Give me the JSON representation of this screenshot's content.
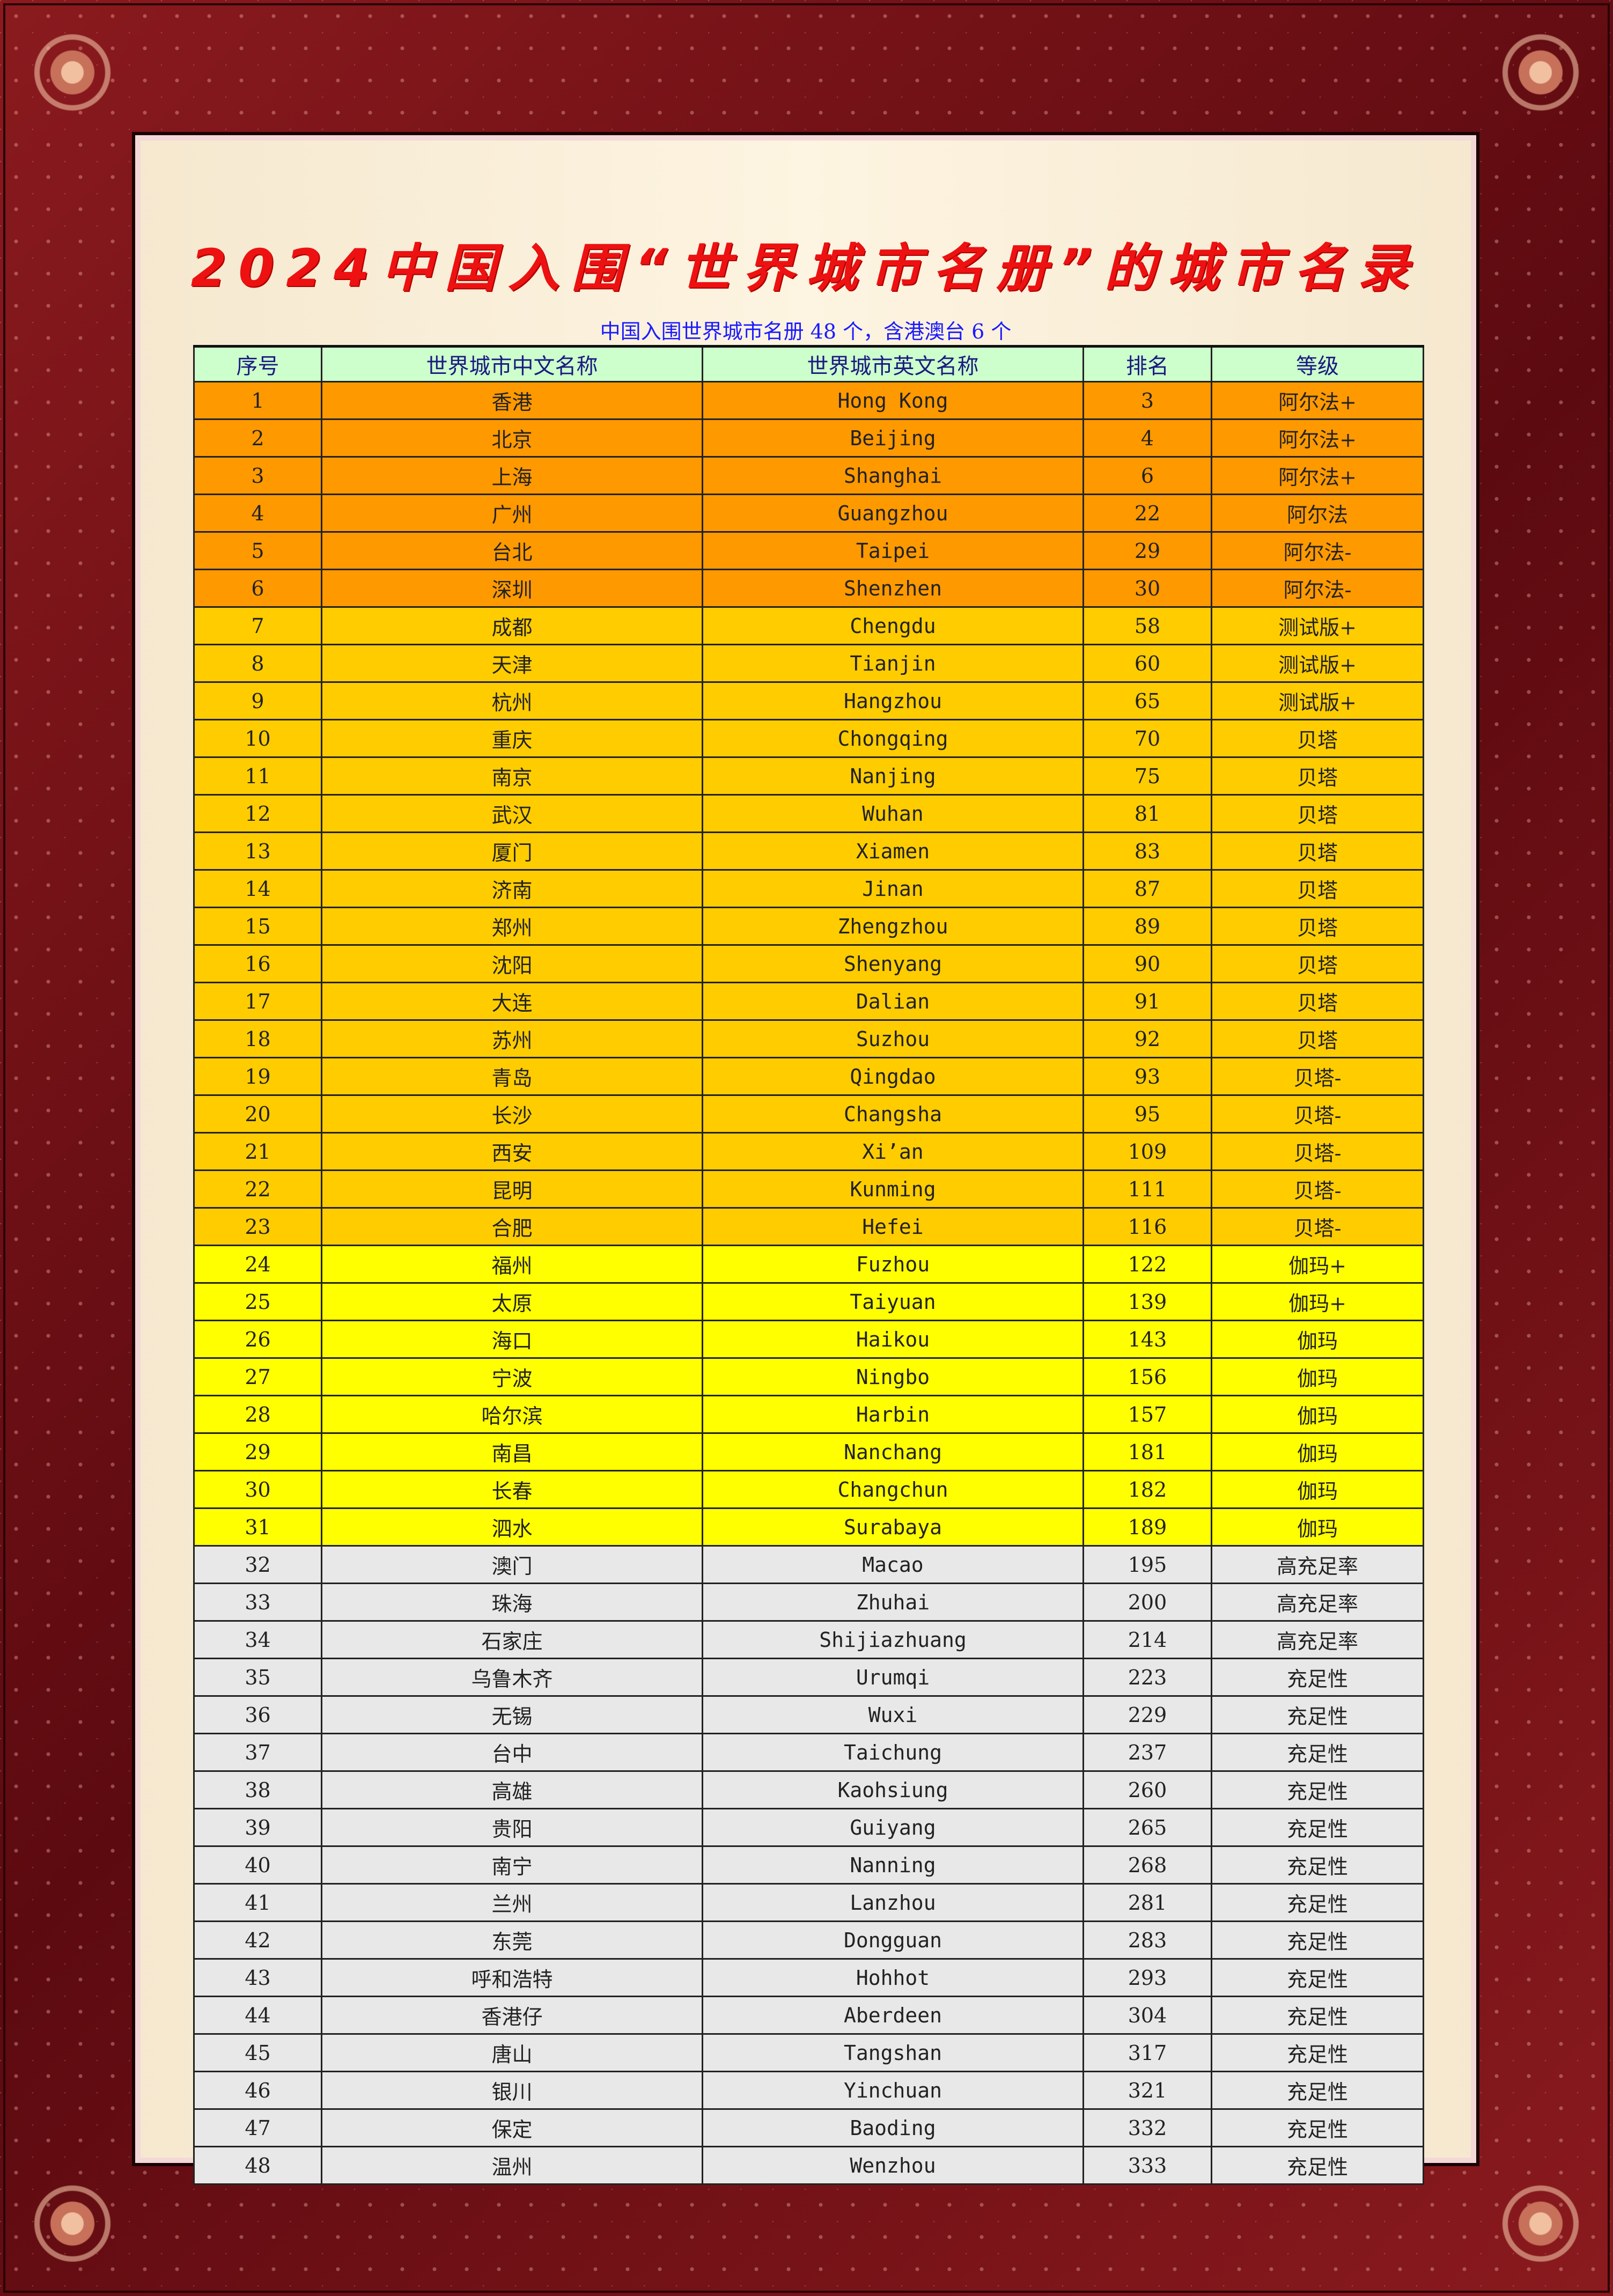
{
  "title": "2024中国入围“世界城市名册”的城市名录",
  "subtitle": "中国入围世界城市名册 48 个，含港澳台 6 个",
  "colors": {
    "alpha": "#FF9900",
    "beta": "#FFCC00",
    "gamma": "#FFFF00",
    "sufficiency": "#E8E8E8",
    "header": "#CCFFCC",
    "title": "#EE1111",
    "subtitle": "#1A1AFF"
  },
  "table": {
    "headers": [
      "序号",
      "世界城市中文名称",
      "世界城市英文名称",
      "排名",
      "等级"
    ],
    "rows": [
      [
        "1",
        "香港",
        "Hong Kong",
        "3",
        "阿尔法+",
        "alpha"
      ],
      [
        "2",
        "北京",
        "Beijing",
        "4",
        "阿尔法+",
        "alpha"
      ],
      [
        "3",
        "上海",
        "Shanghai",
        "6",
        "阿尔法+",
        "alpha"
      ],
      [
        "4",
        "广州",
        "Guangzhou",
        "22",
        "阿尔法",
        "alpha"
      ],
      [
        "5",
        "台北",
        "Taipei",
        "29",
        "阿尔法-",
        "alpha"
      ],
      [
        "6",
        "深圳",
        "Shenzhen",
        "30",
        "阿尔法-",
        "alpha"
      ],
      [
        "7",
        "成都",
        "Chengdu",
        "58",
        "测试版+",
        "beta"
      ],
      [
        "8",
        "天津",
        "Tianjin",
        "60",
        "测试版+",
        "beta"
      ],
      [
        "9",
        "杭州",
        "Hangzhou",
        "65",
        "测试版+",
        "beta"
      ],
      [
        "10",
        "重庆",
        "Chongqing",
        "70",
        "贝塔",
        "beta"
      ],
      [
        "11",
        "南京",
        "Nanjing",
        "75",
        "贝塔",
        "beta"
      ],
      [
        "12",
        "武汉",
        "Wuhan",
        "81",
        "贝塔",
        "beta"
      ],
      [
        "13",
        "厦门",
        "Xiamen",
        "83",
        "贝塔",
        "beta"
      ],
      [
        "14",
        "济南",
        "Jinan",
        "87",
        "贝塔",
        "beta"
      ],
      [
        "15",
        "郑州",
        "Zhengzhou",
        "89",
        "贝塔",
        "beta"
      ],
      [
        "16",
        "沈阳",
        "Shenyang",
        "90",
        "贝塔",
        "beta"
      ],
      [
        "17",
        "大连",
        "Dalian",
        "91",
        "贝塔",
        "beta"
      ],
      [
        "18",
        "苏州",
        "Suzhou",
        "92",
        "贝塔",
        "beta"
      ],
      [
        "19",
        "青岛",
        "Qingdao",
        "93",
        "贝塔-",
        "beta"
      ],
      [
        "20",
        "长沙",
        "Changsha",
        "95",
        "贝塔-",
        "beta"
      ],
      [
        "21",
        "西安",
        "Xi’an",
        "109",
        "贝塔-",
        "beta"
      ],
      [
        "22",
        "昆明",
        "Kunming",
        "111",
        "贝塔-",
        "beta"
      ],
      [
        "23",
        "合肥",
        "Hefei",
        "116",
        "贝塔-",
        "beta"
      ],
      [
        "24",
        "福州",
        "Fuzhou",
        "122",
        "伽玛+",
        "gamma"
      ],
      [
        "25",
        "太原",
        "Taiyuan",
        "139",
        "伽玛+",
        "gamma"
      ],
      [
        "26",
        "海口",
        "Haikou",
        "143",
        "伽玛",
        "gamma"
      ],
      [
        "27",
        "宁波",
        "Ningbo",
        "156",
        "伽玛",
        "gamma"
      ],
      [
        "28",
        "哈尔滨",
        "Harbin",
        "157",
        "伽玛",
        "gamma"
      ],
      [
        "29",
        "南昌",
        "Nanchang",
        "181",
        "伽玛",
        "gamma"
      ],
      [
        "30",
        "长春",
        "Changchun",
        "182",
        "伽玛",
        "gamma"
      ],
      [
        "31",
        "泗水",
        "Surabaya",
        "189",
        "伽玛",
        "gamma"
      ],
      [
        "32",
        "澳门",
        "Macao",
        "195",
        "高充足率",
        "sufficiency"
      ],
      [
        "33",
        "珠海",
        "Zhuhai",
        "200",
        "高充足率",
        "sufficiency"
      ],
      [
        "34",
        "石家庄",
        "Shijiazhuang",
        "214",
        "高充足率",
        "sufficiency"
      ],
      [
        "35",
        "乌鲁木齐",
        "Urumqi",
        "223",
        "充足性",
        "sufficiency"
      ],
      [
        "36",
        "无锡",
        "Wuxi",
        "229",
        "充足性",
        "sufficiency"
      ],
      [
        "37",
        "台中",
        "Taichung",
        "237",
        "充足性",
        "sufficiency"
      ],
      [
        "38",
        "高雄",
        "Kaohsiung",
        "260",
        "充足性",
        "sufficiency"
      ],
      [
        "39",
        "贵阳",
        "Guiyang",
        "265",
        "充足性",
        "sufficiency"
      ],
      [
        "40",
        "南宁",
        "Nanning",
        "268",
        "充足性",
        "sufficiency"
      ],
      [
        "41",
        "兰州",
        "Lanzhou",
        "281",
        "充足性",
        "sufficiency"
      ],
      [
        "42",
        "东莞",
        "Dongguan",
        "283",
        "充足性",
        "sufficiency"
      ],
      [
        "43",
        "呼和浩特",
        "Hohhot",
        "293",
        "充足性",
        "sufficiency"
      ],
      [
        "44",
        "香港仔",
        "Aberdeen",
        "304",
        "充足性",
        "sufficiency"
      ],
      [
        "45",
        "唐山",
        "Tangshan",
        "317",
        "充足性",
        "sufficiency"
      ],
      [
        "46",
        "银川",
        "Yinchuan",
        "321",
        "充足性",
        "sufficiency"
      ],
      [
        "47",
        "保定",
        "Baoding",
        "332",
        "充足性",
        "sufficiency"
      ],
      [
        "48",
        "温州",
        "Wenzhou",
        "333",
        "充足性",
        "sufficiency"
      ]
    ]
  }
}
